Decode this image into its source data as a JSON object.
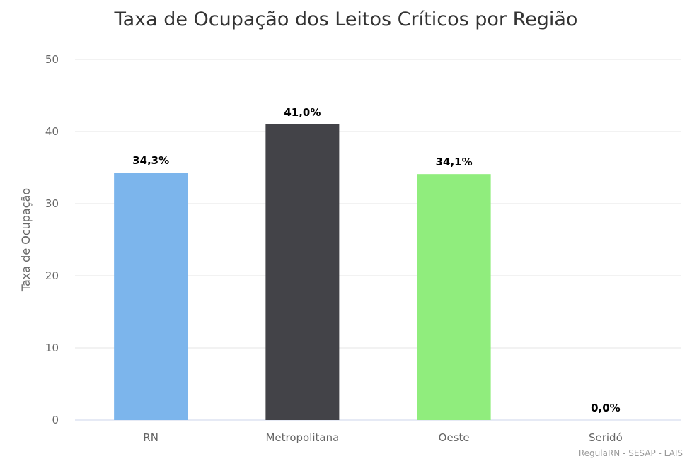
{
  "chart_data": {
    "type": "bar",
    "title": "Taxa de Ocupação dos Leitos Críticos por Região",
    "xlabel": "",
    "ylabel": "Taxa de Ocupação",
    "ylim": [
      0,
      50
    ],
    "yticks": [
      0,
      10,
      20,
      30,
      40,
      50
    ],
    "categories": [
      "RN",
      "Metropolitana",
      "Oeste",
      "Seridó"
    ],
    "values": [
      34.3,
      41.0,
      34.1,
      0.0
    ],
    "data_labels": [
      "34,3%",
      "41,0%",
      "34,1%",
      "0,0%"
    ],
    "colors": [
      "#7cb5ec",
      "#434348",
      "#90ed7d",
      "#f7a35c"
    ],
    "grid": true,
    "legend": "none",
    "credits": "RegulaRN - SESAP - LAIS"
  }
}
